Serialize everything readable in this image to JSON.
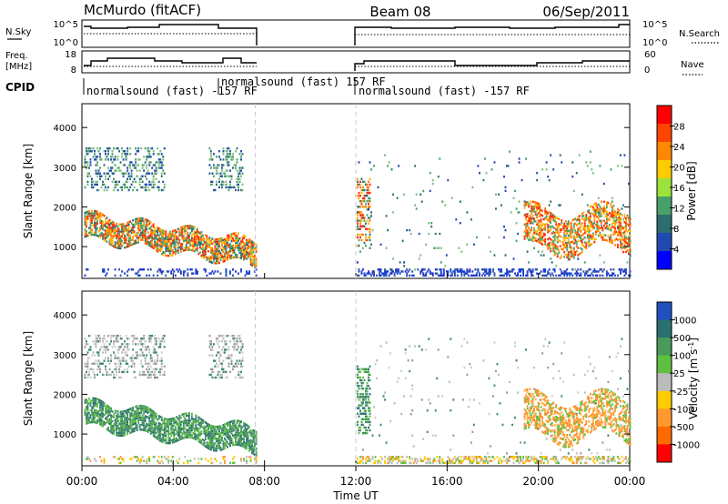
{
  "header": {
    "title_left": "McMurdo (fitACF)",
    "title_center": "Beam 08",
    "title_right": "06/Sep/2011"
  },
  "status_panels": {
    "nsky_label": "N.Sky",
    "nsky_ticks": [
      "10^5",
      "10^0"
    ],
    "nsearch_ticks": [
      "10^5",
      "10^0"
    ],
    "nsearch_label": "N.Search",
    "freq_label_top": "Freq.",
    "freq_label_bottom": "[MHz]",
    "freq_ticks": [
      "18",
      "8"
    ],
    "nave_ticks": [
      "60",
      "0"
    ],
    "nave_label": "Nave",
    "cpid_label": "CPID",
    "cpid_segments": [
      {
        "text": "normalsound (fast) -157 RF"
      },
      {
        "text": "normalsound (fast) 157 RF"
      },
      {
        "text": "normalsound (fast) -157 RF"
      }
    ]
  },
  "chart_data": [
    {
      "type": "heatmap",
      "name_hint": "power",
      "ylabel": "Slant Range [km]",
      "y_ticks": [
        1000,
        2000,
        3000,
        4000
      ],
      "ylim": [
        200,
        4600
      ],
      "colorbar_label": "Power [dB]",
      "colorbar_ticks": [
        "28",
        "24",
        "20",
        "16",
        "12",
        "8",
        "4"
      ],
      "colorbar_colors": [
        "#ff0000",
        "#ff4400",
        "#ff8800",
        "#ffcc00",
        "#9be33b",
        "#4aa06a",
        "#2d6e6e",
        "#204ab0",
        "#0000ff"
      ],
      "data_gap_hours": [
        7.6,
        12.0
      ]
    },
    {
      "type": "heatmap",
      "name_hint": "velocity",
      "ylabel": "Slant Range [km]",
      "y_ticks": [
        1000,
        2000,
        3000,
        4000
      ],
      "ylim": [
        200,
        4600
      ],
      "colorbar_label": "Velocity [m s^-1]",
      "colorbar_ticks": [
        "1000",
        "500",
        "100",
        "25",
        "-25",
        "-100",
        "-500",
        "-1000"
      ],
      "colorbar_colors": [
        "#2050c0",
        "#2b7070",
        "#4a9a5a",
        "#5fc040",
        "#bbbbbb",
        "#ffcc00",
        "#ff9930",
        "#ff6a00",
        "#ff0000"
      ],
      "data_gap_hours": [
        7.6,
        12.0
      ]
    }
  ],
  "time_axis": {
    "xlabel": "Time UT",
    "ticks": [
      "00:00",
      "04:00",
      "08:00",
      "12:00",
      "16:00",
      "20:00",
      "00:00"
    ],
    "xlim_hours": [
      0,
      24
    ]
  }
}
